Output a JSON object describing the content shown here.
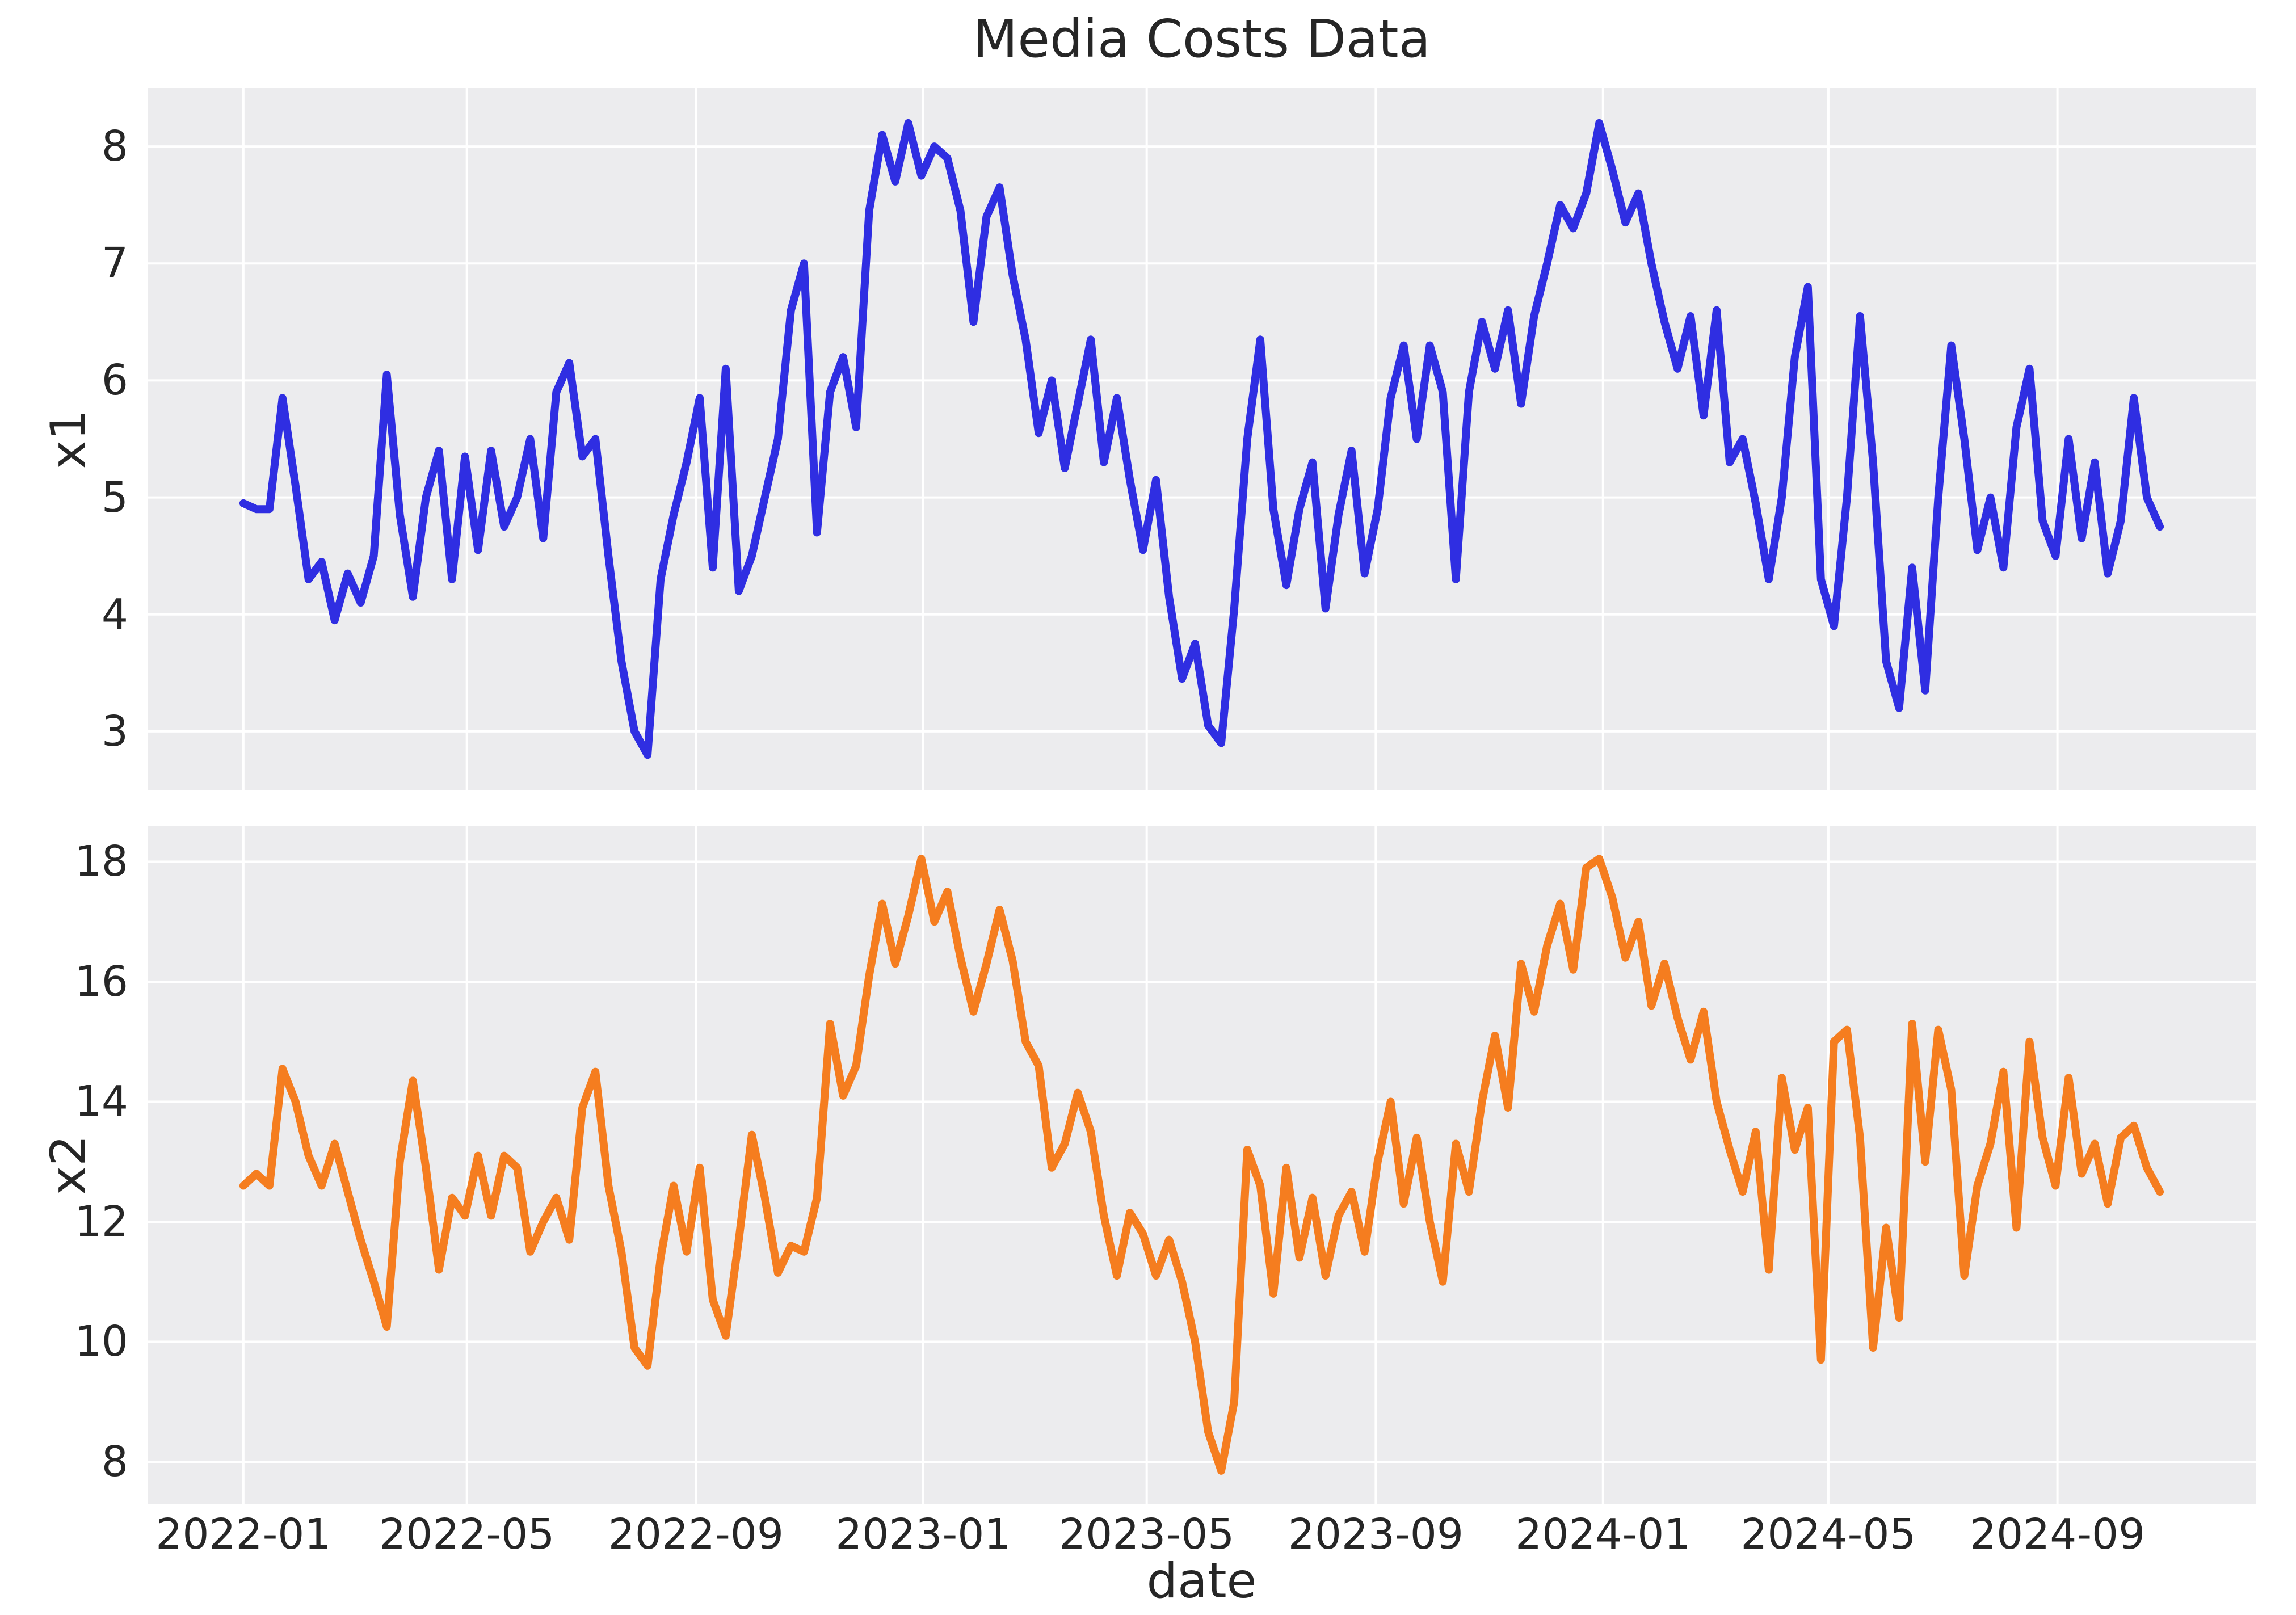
{
  "title": "Media Costs Data",
  "x_axis": {
    "label": "date",
    "tick_labels": [
      "2022-01",
      "2022-05",
      "2022-09",
      "2023-01",
      "2023-05",
      "2023-09",
      "2024-01",
      "2024-05",
      "2024-09"
    ]
  },
  "subplots": [
    {
      "ylabel": "x1",
      "ytick_labels": [
        "3",
        "4",
        "5",
        "6",
        "7",
        "8"
      ]
    },
    {
      "ylabel": "x2",
      "ytick_labels": [
        "8",
        "10",
        "12",
        "14",
        "16",
        "18"
      ]
    }
  ],
  "colors": {
    "x1_line": "#2f2ee2",
    "x2_line": "#f57d1f",
    "plot_background": "#ececee",
    "grid": "#ffffff",
    "text": "#262626",
    "figure_background": "#ffffff"
  },
  "chart_data": {
    "type": "line",
    "title": "Media Costs Data",
    "xlabel": "date",
    "legend": "none",
    "grid": true,
    "x_ticks": [
      {
        "date": "2022-01-01",
        "label": "2022-01"
      },
      {
        "date": "2022-05-01",
        "label": "2022-05"
      },
      {
        "date": "2022-09-01",
        "label": "2022-09"
      },
      {
        "date": "2023-01-01",
        "label": "2023-01"
      },
      {
        "date": "2023-05-01",
        "label": "2023-05"
      },
      {
        "date": "2023-09-01",
        "label": "2023-09"
      },
      {
        "date": "2024-01-01",
        "label": "2024-01"
      },
      {
        "date": "2024-05-01",
        "label": "2024-05"
      },
      {
        "date": "2024-09-01",
        "label": "2024-09"
      }
    ],
    "x": [
      "2022-01-01",
      "2022-01-08",
      "2022-01-15",
      "2022-01-22",
      "2022-01-29",
      "2022-02-05",
      "2022-02-12",
      "2022-02-19",
      "2022-02-26",
      "2022-03-05",
      "2022-03-12",
      "2022-03-19",
      "2022-03-26",
      "2022-04-02",
      "2022-04-09",
      "2022-04-16",
      "2022-04-23",
      "2022-04-30",
      "2022-05-07",
      "2022-05-14",
      "2022-05-21",
      "2022-05-28",
      "2022-06-04",
      "2022-06-11",
      "2022-06-18",
      "2022-06-25",
      "2022-07-02",
      "2022-07-09",
      "2022-07-16",
      "2022-07-23",
      "2022-07-30",
      "2022-08-06",
      "2022-08-13",
      "2022-08-20",
      "2022-08-27",
      "2022-09-03",
      "2022-09-10",
      "2022-09-17",
      "2022-09-24",
      "2022-10-01",
      "2022-10-08",
      "2022-10-15",
      "2022-10-22",
      "2022-10-29",
      "2022-11-05",
      "2022-11-12",
      "2022-11-19",
      "2022-11-26",
      "2022-12-03",
      "2022-12-10",
      "2022-12-17",
      "2022-12-24",
      "2022-12-31",
      "2023-01-07",
      "2023-01-14",
      "2023-01-21",
      "2023-01-28",
      "2023-02-04",
      "2023-02-11",
      "2023-02-18",
      "2023-02-25",
      "2023-03-04",
      "2023-03-11",
      "2023-03-18",
      "2023-03-25",
      "2023-04-01",
      "2023-04-08",
      "2023-04-15",
      "2023-04-22",
      "2023-04-29",
      "2023-05-06",
      "2023-05-13",
      "2023-05-20",
      "2023-05-27",
      "2023-06-03",
      "2023-06-10",
      "2023-06-17",
      "2023-06-24",
      "2023-07-01",
      "2023-07-08",
      "2023-07-15",
      "2023-07-22",
      "2023-07-29",
      "2023-08-05",
      "2023-08-12",
      "2023-08-19",
      "2023-08-26",
      "2023-09-02",
      "2023-09-09",
      "2023-09-16",
      "2023-09-23",
      "2023-09-30",
      "2023-10-07",
      "2023-10-14",
      "2023-10-21",
      "2023-10-28",
      "2023-11-04",
      "2023-11-11",
      "2023-11-18",
      "2023-11-25",
      "2023-12-02",
      "2023-12-09",
      "2023-12-16",
      "2023-12-23",
      "2023-12-30",
      "2024-01-06",
      "2024-01-13",
      "2024-01-20",
      "2024-01-27",
      "2024-02-03",
      "2024-02-10",
      "2024-02-17",
      "2024-02-24",
      "2024-03-02",
      "2024-03-09",
      "2024-03-16",
      "2024-03-23",
      "2024-03-30",
      "2024-04-06",
      "2024-04-13",
      "2024-04-20",
      "2024-04-27",
      "2024-05-04",
      "2024-05-11",
      "2024-05-18",
      "2024-05-25",
      "2024-06-01",
      "2024-06-08",
      "2024-06-15",
      "2024-06-22",
      "2024-06-29",
      "2024-07-06",
      "2024-07-13",
      "2024-07-20",
      "2024-07-27",
      "2024-08-03",
      "2024-08-10",
      "2024-08-17",
      "2024-08-24",
      "2024-08-31",
      "2024-09-07",
      "2024-09-14",
      "2024-09-21",
      "2024-09-28",
      "2024-10-05",
      "2024-10-12",
      "2024-10-19",
      "2024-10-26"
    ],
    "series": [
      {
        "name": "x1",
        "color": "#2f2ee2",
        "ylim": [
          2.5,
          8.5
        ],
        "yticks": [
          3,
          4,
          5,
          6,
          7,
          8
        ],
        "values": [
          4.95,
          4.9,
          4.9,
          5.85,
          5.1,
          4.3,
          4.45,
          3.95,
          4.35,
          4.1,
          4.5,
          6.05,
          4.85,
          4.15,
          5.0,
          5.4,
          4.3,
          5.35,
          4.55,
          5.4,
          4.75,
          5.0,
          5.5,
          4.65,
          5.9,
          6.15,
          5.35,
          5.5,
          4.5,
          3.6,
          3.0,
          2.8,
          4.3,
          4.85,
          5.3,
          5.85,
          4.4,
          6.1,
          4.2,
          4.5,
          5.0,
          5.5,
          6.6,
          7.0,
          4.7,
          5.9,
          6.2,
          5.6,
          7.45,
          8.1,
          7.7,
          8.2,
          7.75,
          8.0,
          7.9,
          7.45,
          6.5,
          7.4,
          7.65,
          6.9,
          6.35,
          5.55,
          6.0,
          5.25,
          5.8,
          6.35,
          5.3,
          5.85,
          5.15,
          4.55,
          5.15,
          4.15,
          3.45,
          3.75,
          3.05,
          2.9,
          4.05,
          5.5,
          6.35,
          4.9,
          4.25,
          4.9,
          5.3,
          4.05,
          4.85,
          5.4,
          4.35,
          4.9,
          5.85,
          6.3,
          5.5,
          6.3,
          5.9,
          4.3,
          5.9,
          6.5,
          6.1,
          6.6,
          5.8,
          6.55,
          7.0,
          7.5,
          7.3,
          7.6,
          8.2,
          7.8,
          7.35,
          7.6,
          7.0,
          6.5,
          6.1,
          6.55,
          5.7,
          6.6,
          5.3,
          5.5,
          4.95,
          4.3,
          5.0,
          6.2,
          6.8,
          4.3,
          3.9,
          5.0,
          6.55,
          5.3,
          3.6,
          3.2,
          4.4,
          3.35,
          5.0,
          6.3,
          5.5,
          4.55,
          5.0,
          4.4,
          5.6,
          6.1,
          4.8,
          4.5,
          5.5,
          4.65,
          5.3,
          4.35,
          4.8,
          5.85,
          5.0,
          4.75
        ]
      },
      {
        "name": "x2",
        "color": "#f57d1f",
        "ylim": [
          7.3,
          18.6
        ],
        "yticks": [
          8,
          10,
          12,
          14,
          16,
          18
        ],
        "values": [
          12.6,
          12.8,
          12.6,
          14.55,
          14.0,
          13.1,
          12.6,
          13.3,
          12.5,
          11.7,
          11.0,
          10.25,
          13.0,
          14.35,
          12.9,
          11.2,
          12.4,
          12.1,
          13.1,
          12.1,
          13.1,
          12.9,
          11.5,
          12.0,
          12.4,
          11.7,
          13.9,
          14.5,
          12.6,
          11.5,
          9.9,
          9.6,
          11.4,
          12.6,
          11.5,
          12.9,
          10.7,
          10.1,
          11.7,
          13.45,
          12.4,
          11.15,
          11.6,
          11.5,
          12.4,
          15.3,
          14.1,
          14.6,
          16.1,
          17.3,
          16.3,
          17.1,
          18.05,
          17.0,
          17.5,
          16.4,
          15.5,
          16.3,
          17.2,
          16.35,
          15.0,
          14.6,
          12.9,
          13.3,
          14.15,
          13.5,
          12.1,
          11.1,
          12.15,
          11.8,
          11.1,
          11.7,
          11.0,
          10.0,
          8.5,
          7.85,
          9.0,
          13.2,
          12.6,
          10.8,
          12.9,
          11.4,
          12.4,
          11.1,
          12.1,
          12.5,
          11.5,
          13.0,
          14.0,
          12.3,
          13.4,
          12.0,
          11.0,
          13.3,
          12.5,
          14.0,
          15.1,
          13.9,
          16.3,
          15.5,
          16.6,
          17.3,
          16.2,
          17.9,
          18.05,
          17.4,
          16.4,
          17.0,
          15.6,
          16.3,
          15.4,
          14.7,
          15.5,
          14.0,
          13.2,
          12.5,
          13.5,
          11.2,
          14.4,
          13.2,
          13.9,
          9.7,
          15.0,
          15.2,
          13.4,
          9.9,
          11.9,
          10.4,
          15.3,
          13.0,
          15.2,
          14.2,
          11.1,
          12.6,
          13.3,
          14.5,
          11.9,
          15.0,
          13.4,
          12.6,
          14.4,
          12.8,
          13.3,
          12.3,
          13.4,
          13.6,
          12.9,
          12.5
        ]
      }
    ]
  }
}
